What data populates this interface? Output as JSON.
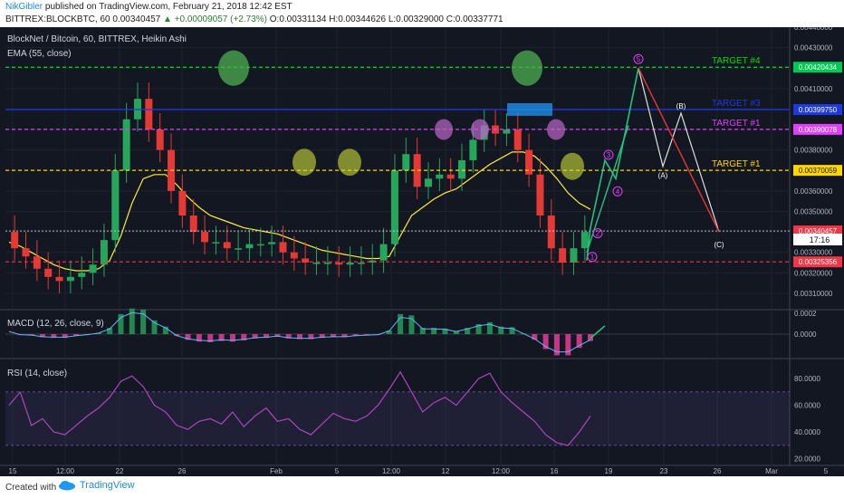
{
  "header": {
    "user": "NikGibler",
    "published": "published on TradingView.com, February 21, 2018 12:42 EST",
    "symbol": "BITTREX:BLOCKBTC, 60",
    "last": "0.00340457",
    "change": "+0.00009057 (+2.73%)",
    "ohlc": "O:0.00331134 H:0.00344626 L:0.00329000 C:0.00337771"
  },
  "footer": {
    "created": "Created with",
    "brand": "TradingView"
  },
  "chart_data": {
    "type": "line",
    "title": "BlockNet / Bitcoin, 60, BITTREX, Heikin Ashi",
    "indicator": "EMA (55, close)",
    "xticks": [
      "15",
      "12:00",
      "22",
      "26",
      "Feb",
      "5",
      "12:00",
      "12",
      "12:00",
      "16",
      "19",
      "23",
      "26",
      "Mar",
      "5"
    ],
    "price_axis": {
      "ylim": [
        0.00302,
        0.0044
      ],
      "ticks": [
        "0.00440000",
        "0.00430000",
        "0.00420000",
        "0.00410000",
        "0.00400000",
        "0.00390000",
        "0.00380000",
        "0.00370000",
        "0.00360000",
        "0.00350000",
        "0.00340000",
        "0.00330000",
        "0.00320000",
        "0.00310000"
      ],
      "values": [
        0.0044,
        0.0043,
        0.0042,
        0.0041,
        0.004,
        0.0039,
        0.0038,
        0.0037,
        0.0036,
        0.0035,
        0.0034,
        0.0033,
        0.0032,
        0.0031
      ]
    },
    "price_labels": [
      {
        "value": 0.00420434,
        "text": "0.00420434",
        "color": "#00c853"
      },
      {
        "value": 0.0039975,
        "text": "0.00399750",
        "color": "#1e3adf"
      },
      {
        "value": 0.00390078,
        "text": "0.00390078",
        "color": "#e040fb"
      },
      {
        "value": 0.00370059,
        "text": "0.00370059",
        "color": "#ffd600"
      },
      {
        "value": 0.00340457,
        "text": "0.00340457",
        "color": "#f23645"
      },
      {
        "value": 0.00325356,
        "text": "0.00325356",
        "color": "#f23645"
      }
    ],
    "countdown": "17:16",
    "targets": [
      {
        "name": "TARGET #4",
        "value": 0.00420434,
        "color": "#00e000"
      },
      {
        "name": "TARGET #3",
        "value": 0.0039975,
        "color": "#1e3adf"
      },
      {
        "name": "TARGET #1",
        "value": 0.00390078,
        "color": "#e040fb"
      },
      {
        "name": "TARGET #1",
        "value": 0.00370059,
        "color": "#ffd600"
      }
    ],
    "support_value": 0.00325356,
    "current_value": 0.00340457,
    "price_series": [
      0.0034,
      0.00332,
      0.00328,
      0.00322,
      0.00318,
      0.00316,
      0.00318,
      0.0032,
      0.00324,
      0.00336,
      0.0037,
      0.00395,
      0.00405,
      0.0039,
      0.0038,
      0.0036,
      0.00348,
      0.0034,
      0.00335,
      0.00335,
      0.00332,
      0.00332,
      0.00334,
      0.00334,
      0.00335,
      0.0033,
      0.00327,
      0.00325,
      0.00325,
      0.00325,
      0.00324,
      0.00325,
      0.00325,
      0.00326,
      0.00334,
      0.0037,
      0.00378,
      0.00362,
      0.00366,
      0.00368,
      0.00366,
      0.00375,
      0.00385,
      0.00392,
      0.00388,
      0.0039,
      0.0038,
      0.00368,
      0.00348,
      0.00332,
      0.00325,
      0.00332,
      0.0034
    ],
    "ema_series": [
      0.00335,
      0.00333,
      0.0033,
      0.00327,
      0.00324,
      0.00322,
      0.00321,
      0.00321,
      0.00322,
      0.00326,
      0.00338,
      0.00354,
      0.00366,
      0.00368,
      0.00368,
      0.00363,
      0.00357,
      0.00352,
      0.00348,
      0.00346,
      0.00344,
      0.00342,
      0.00341,
      0.0034,
      0.00339,
      0.00337,
      0.00335,
      0.00333,
      0.00331,
      0.0033,
      0.00329,
      0.00328,
      0.00327,
      0.00327,
      0.00328,
      0.00338,
      0.00348,
      0.00352,
      0.00356,
      0.00359,
      0.00361,
      0.00365,
      0.00369,
      0.00373,
      0.00376,
      0.00379,
      0.00379,
      0.00377,
      0.00372,
      0.00366,
      0.00359,
      0.00354,
      0.00351
    ],
    "macd": {
      "label": "MACD (12, 26, close, 9)",
      "ticks": [
        "0.0002",
        "0.0000"
      ],
      "tick_values": [
        0.0002,
        0.0
      ],
      "ylim": [
        -0.0002,
        0.0002
      ]
    },
    "rsi": {
      "label": "RSI (14, close)",
      "ticks": [
        "80.0000",
        "60.0000",
        "40.0000",
        "20.0000"
      ],
      "tick_values": [
        80,
        60,
        40,
        20
      ],
      "ylim": [
        15,
        95
      ],
      "bands": [
        70,
        30
      ],
      "series": [
        60,
        70,
        45,
        50,
        40,
        38,
        45,
        52,
        58,
        66,
        78,
        82,
        74,
        60,
        55,
        45,
        42,
        48,
        50,
        46,
        55,
        44,
        52,
        58,
        48,
        50,
        42,
        38,
        46,
        54,
        50,
        48,
        52,
        60,
        72,
        85,
        70,
        55,
        62,
        66,
        60,
        70,
        80,
        84,
        70,
        62,
        55,
        48,
        38,
        32,
        30,
        40,
        52
      ]
    },
    "wave_labels": [
      "1",
      "2",
      "3",
      "4",
      "5",
      "(A)",
      "(B)",
      "(C)"
    ]
  }
}
